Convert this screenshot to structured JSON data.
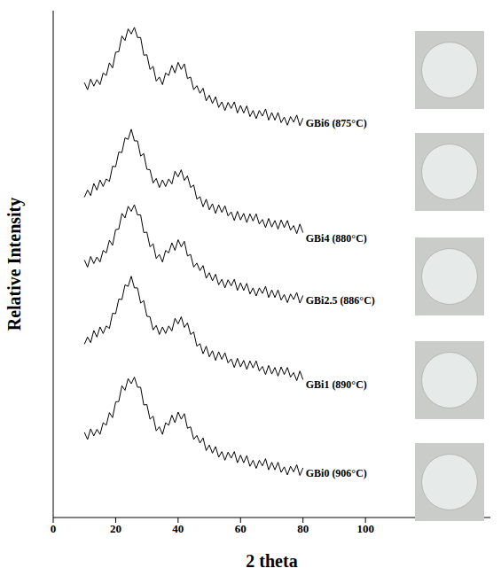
{
  "chart_data": {
    "type": "line",
    "x_label": "2 theta",
    "y_label": "Relative Intensity",
    "tick_labels": "x",
    "xlim": [
      0,
      140
    ],
    "xticks": [
      0,
      20,
      40,
      60,
      80,
      100
    ],
    "ylim": [
      0,
      100
    ],
    "grid": false,
    "x": [
      10,
      11,
      12,
      13,
      14,
      15,
      16,
      17,
      18,
      19,
      20,
      21,
      22,
      23,
      24,
      25,
      26,
      27,
      28,
      29,
      30,
      31,
      32,
      33,
      34,
      35,
      36,
      37,
      38,
      39,
      40,
      41,
      42,
      43,
      44,
      45,
      46,
      47,
      48,
      49,
      50,
      51,
      52,
      53,
      54,
      55,
      56,
      57,
      58,
      59,
      60,
      61,
      62,
      63,
      64,
      65,
      66,
      67,
      68,
      69,
      70,
      71,
      72,
      73,
      74,
      75,
      76,
      77,
      78,
      79,
      80
    ],
    "series": [
      {
        "name": "GBi0 (906°C)",
        "color": "#000000",
        "values": [
          16.8,
          15.4,
          17.5,
          16.1,
          17.4,
          16.4,
          18.7,
          18.2,
          20.7,
          19.7,
          22.8,
          22.9,
          26.0,
          25.1,
          27.4,
          26.4,
          27.7,
          25.7,
          25.7,
          22.2,
          22.3,
          19.4,
          20.0,
          17.1,
          17.9,
          16.4,
          18.7,
          18.2,
          20.2,
          18.7,
          20.8,
          19.4,
          20.5,
          17.6,
          17.9,
          15.4,
          16.2,
          14.7,
          15.7,
          13.2,
          14.3,
          12.7,
          14.0,
          11.9,
          13.0,
          11.3,
          12.9,
          11.7,
          13.0,
          10.8,
          12.3,
          10.8,
          12.2,
          10.1,
          11.3,
          9.7,
          11.3,
          10.2,
          11.6,
          9.4,
          10.9,
          9.4,
          10.9,
          8.9,
          10.0,
          8.4,
          10.1,
          9.0,
          10.4,
          8.3,
          9.8
        ]
      },
      {
        "name": "GBi1 (890°C)",
        "color": "#000000",
        "values": [
          34.2,
          35.6,
          34.5,
          36.9,
          35.6,
          37.6,
          36.3,
          37.8,
          37.3,
          40.3,
          40.2,
          43.1,
          43.0,
          45.9,
          45.6,
          47.6,
          45.3,
          45.3,
          42.3,
          42.8,
          39.7,
          39.6,
          37.0,
          37.9,
          36.1,
          37.6,
          36.3,
          37.8,
          36.8,
          39.3,
          38.2,
          39.6,
          37.5,
          38.4,
          36.1,
          36.6,
          33.8,
          34.3,
          32.3,
          33.8,
          31.7,
          32.9,
          31.0,
          32.7,
          31.2,
          32.5,
          30.5,
          31.3,
          29.6,
          31.4,
          29.7,
          31.0,
          29.2,
          30.9,
          29.5,
          30.9,
          28.9,
          29.8,
          28.2,
          30.0,
          28.3,
          29.6,
          27.9,
          29.7,
          28.2,
          29.6,
          27.7,
          28.6,
          27.0,
          28.9,
          27.2
        ]
      },
      {
        "name": "GBi2.5 (886°C)",
        "color": "#000000",
        "values": [
          50.8,
          49.4,
          51.5,
          50.1,
          51.4,
          50.4,
          52.7,
          52.2,
          54.7,
          53.7,
          56.8,
          56.9,
          60.0,
          59.1,
          61.4,
          60.4,
          61.7,
          59.7,
          59.7,
          56.2,
          56.3,
          53.4,
          54.0,
          51.1,
          51.9,
          50.4,
          52.7,
          52.2,
          54.2,
          52.7,
          54.8,
          53.4,
          54.5,
          51.6,
          51.9,
          49.4,
          50.2,
          48.7,
          49.7,
          47.2,
          48.3,
          46.7,
          48.0,
          45.9,
          47.0,
          45.3,
          46.9,
          45.7,
          47.0,
          44.8,
          46.3,
          44.8,
          46.2,
          44.1,
          45.3,
          43.7,
          45.3,
          44.2,
          45.6,
          43.4,
          44.9,
          43.4,
          44.9,
          42.9,
          44.0,
          42.4,
          44.1,
          43.0,
          44.4,
          42.3,
          43.8
        ]
      },
      {
        "name": "GBi4 (880°C)",
        "color": "#000000",
        "values": [
          63.2,
          64.6,
          63.5,
          65.9,
          64.6,
          66.6,
          65.3,
          66.8,
          66.3,
          69.3,
          69.2,
          72.1,
          72.0,
          74.9,
          74.6,
          76.6,
          74.3,
          74.3,
          71.3,
          71.8,
          68.7,
          68.6,
          66.0,
          66.9,
          65.1,
          66.6,
          65.3,
          66.8,
          65.8,
          68.3,
          67.2,
          68.6,
          66.5,
          67.4,
          65.1,
          65.6,
          62.8,
          63.3,
          61.3,
          62.8,
          60.7,
          61.9,
          60.0,
          61.7,
          60.2,
          61.5,
          59.5,
          60.3,
          58.6,
          60.4,
          58.7,
          60.0,
          58.2,
          59.9,
          58.5,
          59.9,
          57.9,
          58.8,
          57.2,
          59.0,
          57.3,
          58.6,
          56.9,
          58.7,
          57.2,
          58.6,
          56.7,
          57.6,
          56.0,
          57.9,
          56.2
        ]
      },
      {
        "name": "GBi6 (875°C)",
        "color": "#000000",
        "values": [
          85.8,
          84.4,
          86.5,
          85.1,
          86.4,
          85.4,
          87.7,
          87.2,
          89.7,
          88.7,
          91.8,
          91.9,
          95.0,
          94.1,
          96.4,
          95.4,
          96.7,
          94.7,
          94.7,
          91.2,
          91.3,
          88.4,
          89.0,
          86.1,
          86.9,
          85.4,
          87.7,
          87.2,
          89.2,
          87.7,
          89.8,
          88.4,
          89.5,
          86.6,
          86.9,
          84.4,
          85.2,
          83.7,
          84.7,
          82.2,
          83.3,
          81.7,
          83.0,
          80.9,
          82.0,
          80.3,
          81.9,
          80.7,
          82.0,
          79.8,
          81.3,
          79.8,
          81.2,
          79.1,
          80.3,
          78.7,
          80.3,
          79.2,
          80.6,
          78.4,
          79.9,
          78.4,
          79.9,
          77.9,
          79.0,
          77.4,
          79.1,
          78.0,
          79.4,
          77.3,
          78.8
        ]
      }
    ]
  }
}
